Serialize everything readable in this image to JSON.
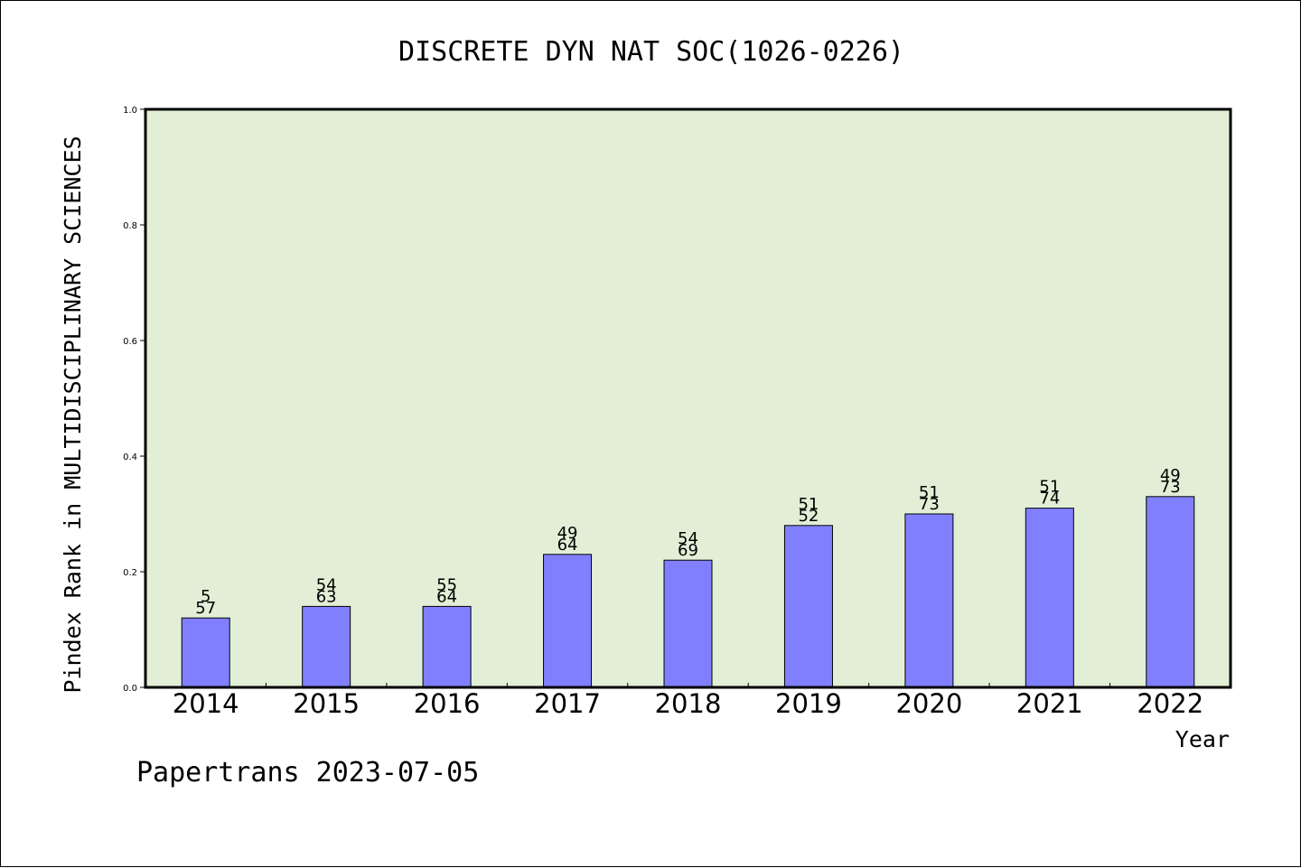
{
  "colors": {
    "plot_background": "#e2efd6",
    "bar_fill": "#8080ff",
    "bar_stroke": "#000000",
    "axis": "#000000"
  },
  "footer": "Papertrans 2023-07-05",
  "chart_data": {
    "type": "bar",
    "title": "DISCRETE DYN NAT SOC(1026-0226)",
    "xlabel": "Year",
    "ylabel": "Pindex Rank in MULTIDISCIPLINARY SCIENCES",
    "categories": [
      "2014",
      "2015",
      "2016",
      "2017",
      "2018",
      "2019",
      "2020",
      "2021",
      "2022"
    ],
    "values": [
      0.12,
      0.14,
      0.14,
      0.23,
      0.22,
      0.28,
      0.3,
      0.31,
      0.33
    ],
    "label_top": [
      "5",
      "54",
      "55",
      "49",
      "54",
      "51",
      "51",
      "51",
      "49"
    ],
    "label_bottom": [
      "57",
      "63",
      "64",
      "64",
      "69",
      "52",
      "73",
      "74",
      "73"
    ],
    "ylim": [
      0.0,
      1.0
    ],
    "yticks": [
      "0.0",
      "0.2",
      "0.4",
      "0.6",
      "0.8",
      "1.0"
    ],
    "grid": false,
    "legend": "none"
  }
}
